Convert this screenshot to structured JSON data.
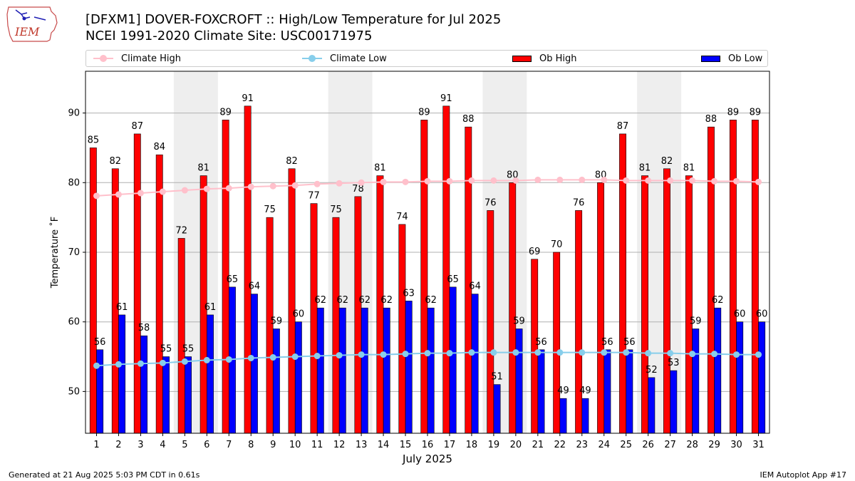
{
  "header": {
    "logo_text": "IEM",
    "title_line1": "[DFXM1] DOVER-FOXCROFT :: High/Low Temperature for Jul 2025",
    "title_line2": "NCEI 1991-2020 Climate Site: USC00171975"
  },
  "legend": {
    "items": [
      {
        "label": "Climate High",
        "color": "#ffc0cb",
        "kind": "line"
      },
      {
        "label": "Climate Low",
        "color": "#87ceeb",
        "kind": "line"
      },
      {
        "label": "Ob High",
        "color": "#ff0000",
        "kind": "bar"
      },
      {
        "label": "Ob Low",
        "color": "#0000ff",
        "kind": "bar"
      }
    ]
  },
  "footer": {
    "left": "Generated at 21 Aug 2025 5:03 PM CDT in 0.61s",
    "right": "IEM Autoplot App #17"
  },
  "chart_data": {
    "type": "bar",
    "title": "[DFXM1] DOVER-FOXCROFT :: High/Low Temperature for Jul 2025",
    "subtitle": "NCEI 1991-2020 Climate Site: USC00171975",
    "xlabel": "July 2025",
    "ylabel": "Temperature ˚F",
    "ylim": [
      44,
      96
    ],
    "yticks": [
      50,
      60,
      70,
      80,
      90
    ],
    "grid": true,
    "legend_position": "top",
    "categories": [
      "1",
      "2",
      "3",
      "4",
      "5",
      "6",
      "7",
      "8",
      "9",
      "10",
      "11",
      "12",
      "13",
      "14",
      "15",
      "16",
      "17",
      "18",
      "19",
      "20",
      "21",
      "22",
      "23",
      "24",
      "25",
      "26",
      "27",
      "28",
      "29",
      "30",
      "31"
    ],
    "weekend_shading": [
      [
        5,
        6
      ],
      [
        12,
        13
      ],
      [
        19,
        20
      ],
      [
        26,
        27
      ]
    ],
    "series": [
      {
        "name": "Ob High",
        "type": "bar",
        "color": "#ff0000",
        "values": [
          85,
          82,
          87,
          84,
          72,
          81,
          89,
          91,
          75,
          82,
          77,
          75,
          78,
          81,
          74,
          89,
          91,
          88,
          76,
          80,
          69,
          70,
          76,
          80,
          87,
          81,
          82,
          81,
          88,
          89,
          89
        ]
      },
      {
        "name": "Ob Low",
        "type": "bar",
        "color": "#0000ff",
        "values": [
          56,
          61,
          58,
          55,
          55,
          61,
          65,
          64,
          59,
          60,
          62,
          62,
          62,
          62,
          63,
          62,
          65,
          64,
          51,
          59,
          56,
          49,
          49,
          56,
          56,
          52,
          53,
          59,
          62,
          60,
          60
        ]
      },
      {
        "name": "Climate High",
        "type": "line",
        "color": "#ffc0cb",
        "values": [
          78.1,
          78.3,
          78.5,
          78.7,
          78.9,
          79.1,
          79.2,
          79.4,
          79.5,
          79.6,
          79.8,
          79.9,
          80.0,
          80.1,
          80.1,
          80.2,
          80.2,
          80.3,
          80.3,
          80.3,
          80.4,
          80.4,
          80.4,
          80.4,
          80.3,
          80.3,
          80.3,
          80.3,
          80.2,
          80.2,
          80.1
        ]
      },
      {
        "name": "Climate Low",
        "type": "line",
        "color": "#87ceeb",
        "values": [
          53.7,
          53.9,
          54.0,
          54.1,
          54.3,
          54.5,
          54.6,
          54.8,
          54.9,
          55.0,
          55.1,
          55.2,
          55.3,
          55.3,
          55.4,
          55.5,
          55.5,
          55.6,
          55.6,
          55.6,
          55.6,
          55.6,
          55.6,
          55.6,
          55.6,
          55.5,
          55.5,
          55.4,
          55.4,
          55.3,
          55.3
        ]
      }
    ]
  }
}
